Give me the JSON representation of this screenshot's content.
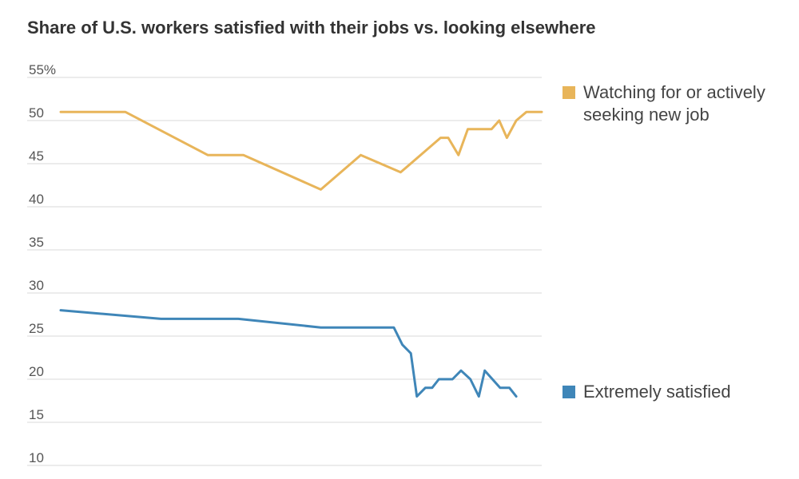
{
  "chart_data": {
    "type": "line",
    "title": "Share of U.S. workers satisfied with their jobs vs. looking elsewhere",
    "xlabel": "",
    "ylabel": "",
    "ylim": [
      10,
      55
    ],
    "yticks": [
      {
        "value": 55,
        "label": "55%"
      },
      {
        "value": 50,
        "label": "50"
      },
      {
        "value": 45,
        "label": "45"
      },
      {
        "value": 40,
        "label": "40"
      },
      {
        "value": 35,
        "label": "35"
      },
      {
        "value": 30,
        "label": "30"
      },
      {
        "value": 25,
        "label": "25"
      },
      {
        "value": 20,
        "label": "20"
      },
      {
        "value": 15,
        "label": "15"
      },
      {
        "value": 10,
        "label": "10"
      }
    ],
    "series": [
      {
        "name": "Watching for or actively seeking new job",
        "color": "#e8b55a",
        "x": [
          0,
          7.6,
          17.3,
          21.5,
          30.6,
          35.3,
          40.0,
          44.7,
          45.6,
          46.8,
          47.9,
          50.7,
          51.6,
          52.5,
          53.6,
          54.8,
          55.7,
          56.6
        ],
        "values": [
          51,
          51,
          46,
          46,
          42,
          46,
          44,
          48,
          48,
          46,
          49,
          49,
          50,
          48,
          50,
          51,
          51,
          51
        ]
      },
      {
        "name": "Extremely satisfied",
        "color": "#3f86b8",
        "x": [
          0,
          11.8,
          20.9,
          30.6,
          39.2,
          40.2,
          41.2,
          41.9,
          42.9,
          43.7,
          44.5,
          46.1,
          47.1,
          48.2,
          49.2,
          49.9,
          51.7,
          52.8,
          53.6
        ],
        "values": [
          28,
          27,
          27,
          26,
          26,
          24,
          23,
          18,
          19,
          19,
          20,
          20,
          21,
          20,
          18,
          21,
          19,
          19,
          18
        ]
      }
    ],
    "legend": [
      {
        "name": "Watching for or actively seeking new job",
        "color": "#e8b55a"
      },
      {
        "name": "Extremely satisfied",
        "color": "#3f86b8"
      }
    ]
  }
}
